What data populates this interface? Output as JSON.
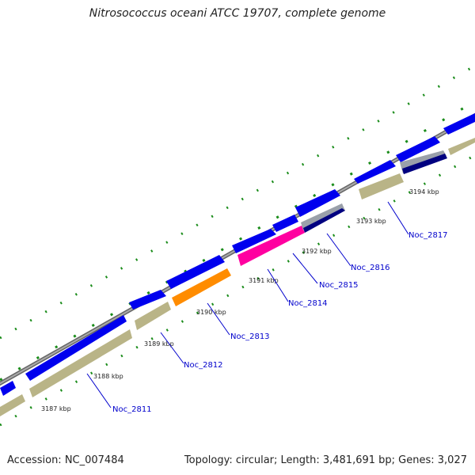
{
  "title": "Nitrosococcus oceani ATCC 19707, complete genome",
  "footer": {
    "accession": "Accession: NC_007484",
    "stats": "Topology: circular; Length: 3,481,691 bp; Genes: 3,027"
  },
  "colors": {
    "backbone": "#888888",
    "forward_cds": "#0000ee",
    "reverse_cds": "#b9b487",
    "highlight_orange": "#ff8c00",
    "highlight_magenta": "#ff00a0",
    "highlight_navy": "#000080",
    "ticks": "#1a8c1a",
    "label": "#0000cc"
  },
  "kbp_labels": [
    "3187 kbp",
    "3188 kbp",
    "3189 kbp",
    "3190 kbp",
    "3191 kbp",
    "3192 kbp",
    "3193 kbp",
    "3194 kbp"
  ],
  "gene_labels": [
    "Noc_2811",
    "Noc_2812",
    "Noc_2813",
    "Noc_2814",
    "Noc_2815",
    "Noc_2816",
    "Noc_2817"
  ]
}
